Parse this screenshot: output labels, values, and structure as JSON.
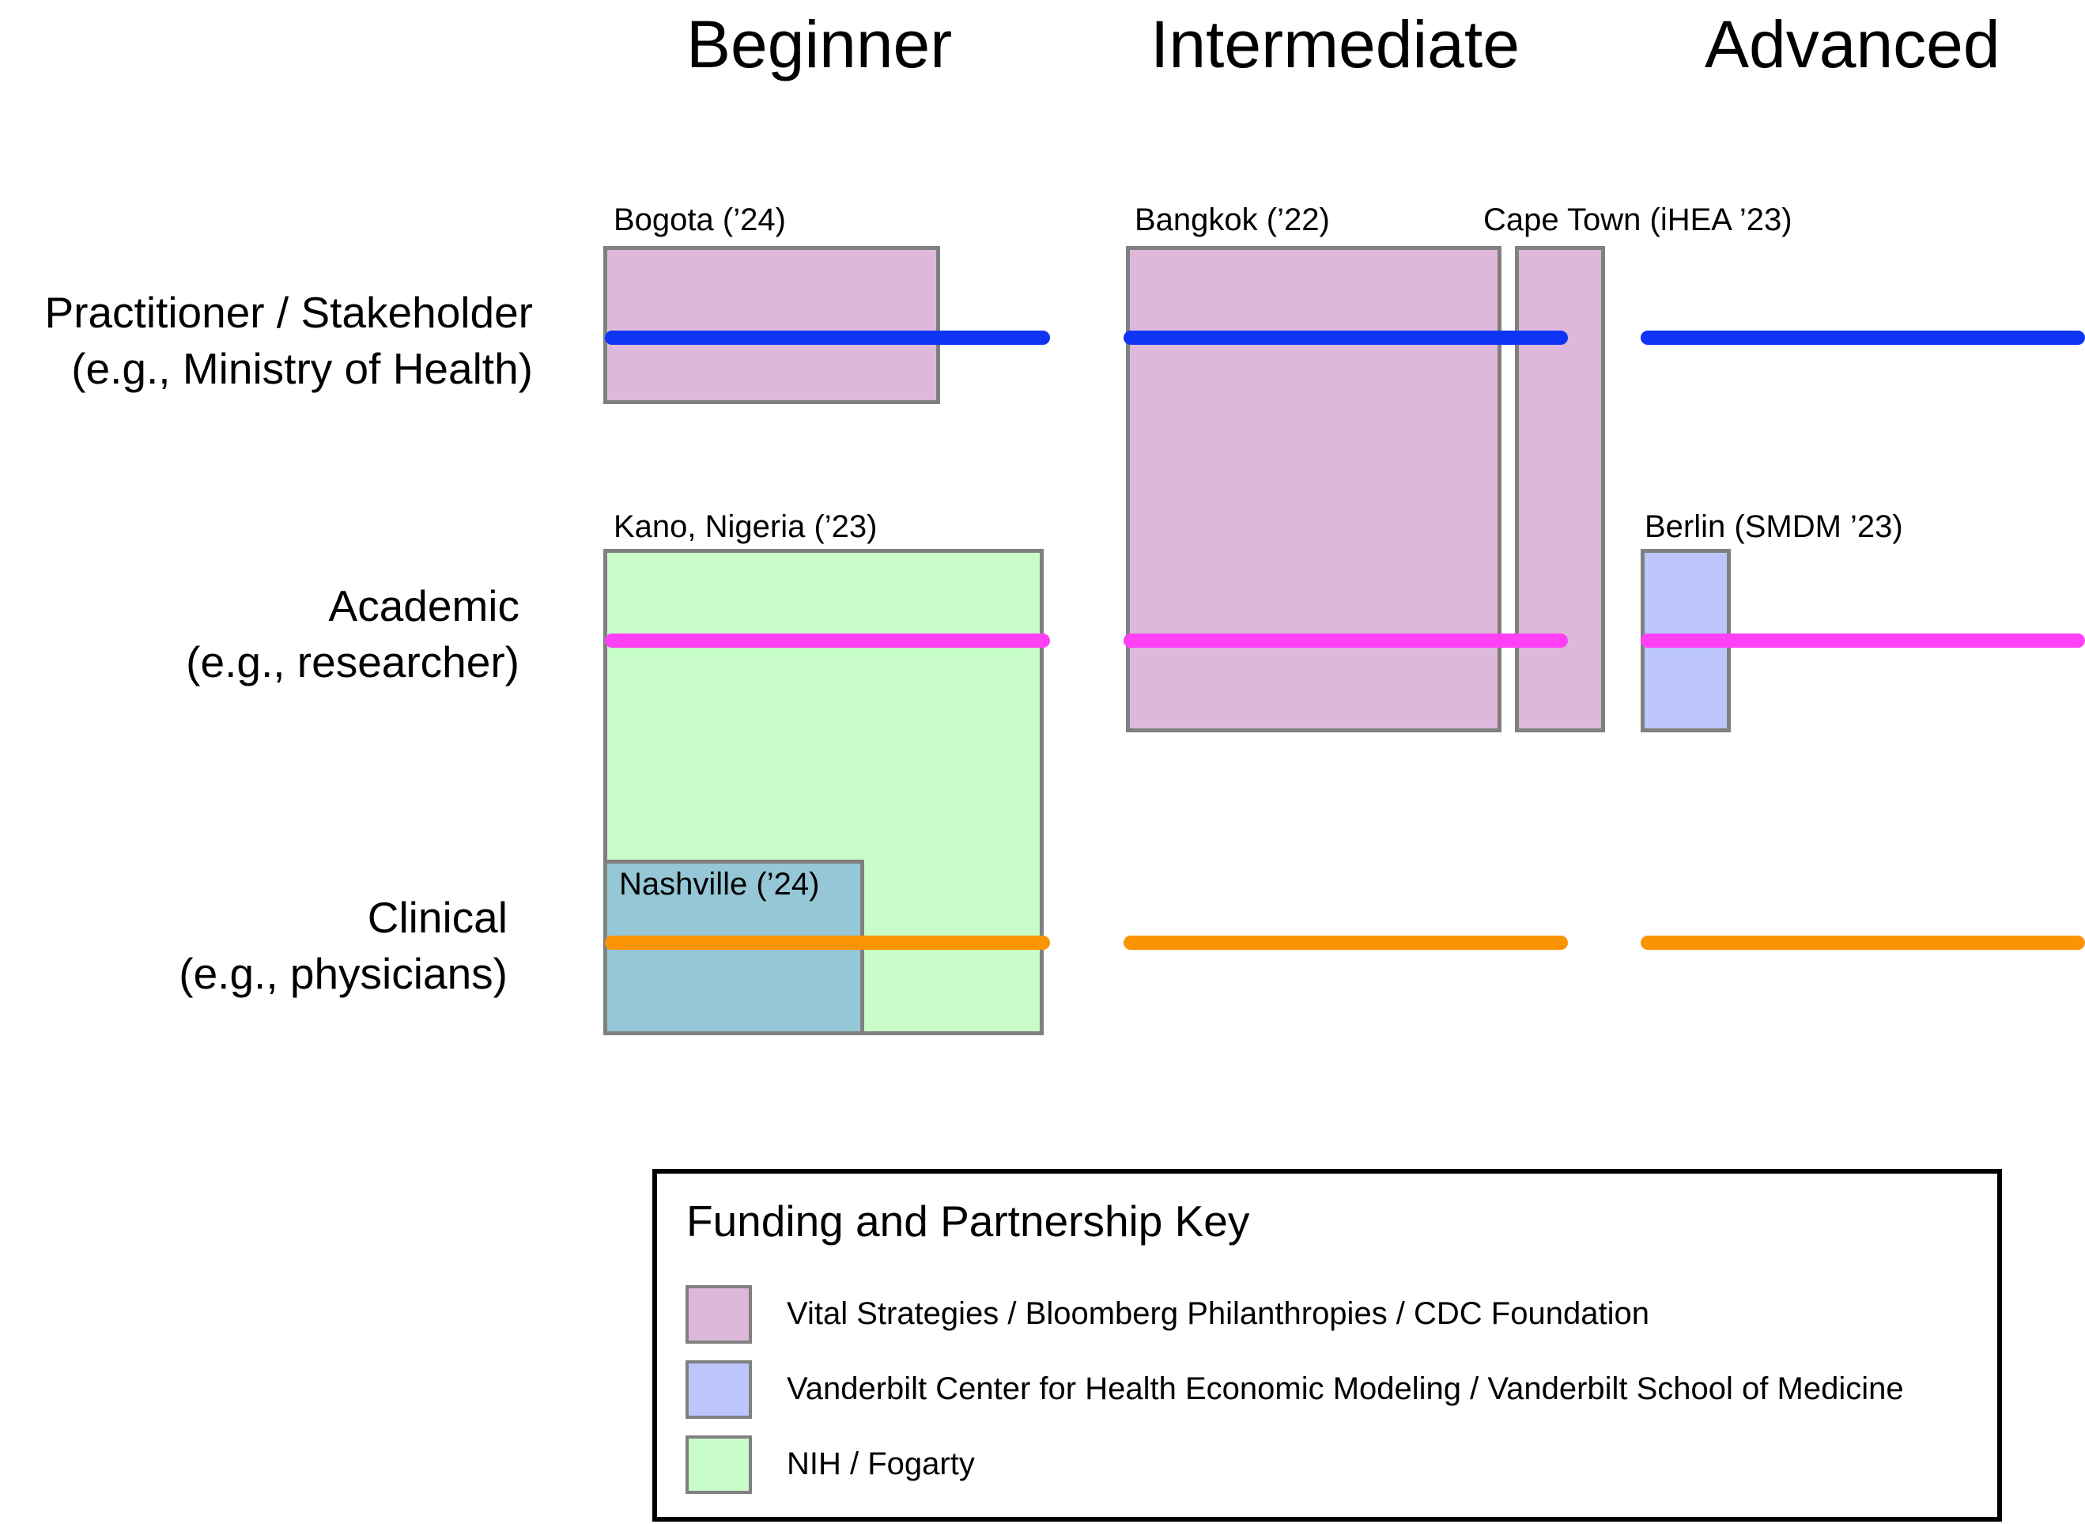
{
  "levels": [
    "Beginner",
    "Intermediate",
    "Advanced"
  ],
  "audiences": [
    {
      "name": "Practitioner / Stakeholder",
      "example": "(e.g., Ministry of Health)",
      "color": "#1034F6"
    },
    {
      "name": "Academic",
      "example": "(e.g., researcher)",
      "color": "#FF40F5"
    },
    {
      "name": "Clinical",
      "example": "(e.g., physicians)",
      "color": "#FA9405"
    }
  ],
  "workshops": [
    {
      "label": "Bogota (’24)",
      "funder": "Vital Strategies / Bloomberg Philanthropies / CDC Foundation"
    },
    {
      "label": "Bangkok (’22)",
      "funder": "Vital Strategies / Bloomberg Philanthropies / CDC Foundation"
    },
    {
      "label": "Cape Town (iHEA ’23)",
      "funder": "Vital Strategies / Bloomberg Philanthropies / CDC Foundation"
    },
    {
      "label": "Kano, Nigeria (’23)",
      "funder": "NIH / Fogarty"
    },
    {
      "label": "Berlin (SMDM ’23)",
      "funder": "Vanderbilt Center for Health Economic Modeling / Vanderbilt School of Medicine"
    },
    {
      "label": "Nashville (’24)",
      "funder": ""
    }
  ],
  "key": {
    "title": "Funding and Partnership Key",
    "items": [
      {
        "label": "Vital Strategies / Bloomberg Philanthropies / CDC Foundation",
        "color": "#DDB8DB"
      },
      {
        "label": "Vanderbilt Center for Health Economic Modeling / Vanderbilt School of Medicine",
        "color": "#BCC6FC"
      },
      {
        "label": "NIH / Fogarty",
        "color": "#C8FCC8"
      }
    ]
  },
  "colors": {
    "overlap": "#95C7D6",
    "border": "#808080"
  }
}
